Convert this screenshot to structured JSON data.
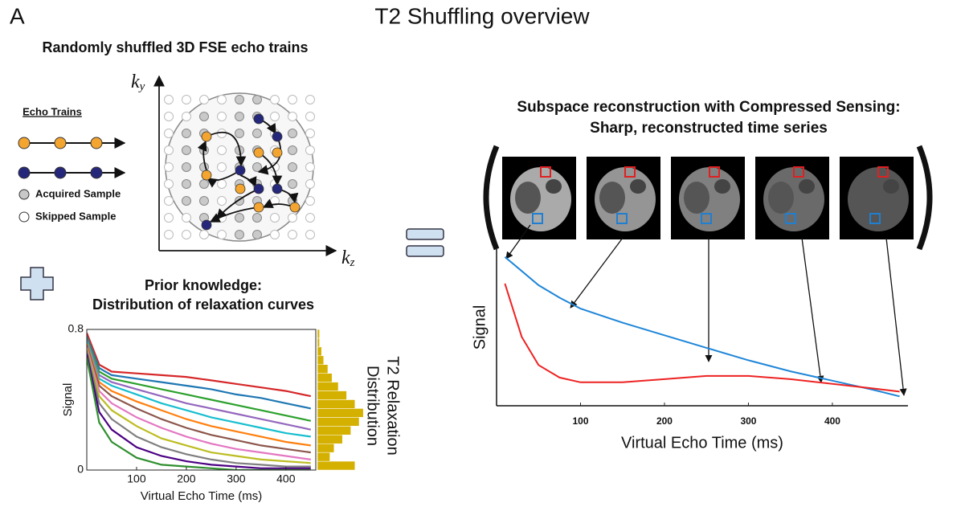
{
  "panel_label": "A",
  "title": "T2 Shuffling overview",
  "sampling": {
    "heading": "Randomly shuffled 3D FSE echo trains",
    "legend_title": "Echo Trains",
    "legend": [
      "Acquired Sample",
      "Skipped Sample"
    ],
    "axis_y": {
      "base": "k",
      "sub": "y"
    },
    "axis_z": {
      "base": "k",
      "sub": "z"
    }
  },
  "prior": {
    "heading": [
      "Prior knowledge:",
      "Distribution of relaxation curves"
    ],
    "histogram_label": [
      "T2 Relaxation",
      "Distribution"
    ]
  },
  "recon": {
    "heading": [
      "Subspace reconstruction with Compressed Sensing:",
      "Sharp, reconstructed time series"
    ]
  },
  "chart_data": [
    {
      "type": "line",
      "xlabel": "Virtual Echo Time (ms)",
      "ylabel": "Signal",
      "xlim": [
        0,
        460
      ],
      "ylim": [
        0,
        0.8
      ],
      "xticks": [
        100,
        200,
        300,
        400
      ],
      "yticks": [
        0,
        0.8
      ],
      "x": [
        0,
        25,
        50,
        100,
        150,
        200,
        250,
        300,
        350,
        400,
        450
      ],
      "series": [
        {
          "color": "#d62728",
          "values": [
            0.78,
            0.6,
            0.56,
            0.55,
            0.54,
            0.53,
            0.51,
            0.49,
            0.47,
            0.45,
            0.42
          ]
        },
        {
          "color": "#1f77b4",
          "values": [
            0.76,
            0.58,
            0.54,
            0.52,
            0.5,
            0.48,
            0.46,
            0.43,
            0.41,
            0.38,
            0.35
          ]
        },
        {
          "color": "#2ca02c",
          "values": [
            0.75,
            0.56,
            0.52,
            0.49,
            0.46,
            0.43,
            0.4,
            0.37,
            0.34,
            0.31,
            0.28
          ]
        },
        {
          "color": "#9467bd",
          "values": [
            0.74,
            0.54,
            0.5,
            0.46,
            0.42,
            0.38,
            0.35,
            0.32,
            0.29,
            0.26,
            0.23
          ]
        },
        {
          "color": "#17becf",
          "values": [
            0.73,
            0.52,
            0.48,
            0.43,
            0.38,
            0.34,
            0.3,
            0.27,
            0.24,
            0.21,
            0.19
          ]
        },
        {
          "color": "#ff7f0e",
          "values": [
            0.72,
            0.5,
            0.45,
            0.39,
            0.34,
            0.29,
            0.25,
            0.22,
            0.19,
            0.16,
            0.14
          ]
        },
        {
          "color": "#8c564b",
          "values": [
            0.71,
            0.48,
            0.42,
            0.35,
            0.29,
            0.24,
            0.2,
            0.17,
            0.14,
            0.12,
            0.1
          ]
        },
        {
          "color": "#e377c2",
          "values": [
            0.7,
            0.45,
            0.38,
            0.3,
            0.24,
            0.19,
            0.15,
            0.12,
            0.1,
            0.08,
            0.06
          ]
        },
        {
          "color": "#bcbd22",
          "values": [
            0.69,
            0.42,
            0.34,
            0.25,
            0.18,
            0.14,
            0.1,
            0.08,
            0.06,
            0.05,
            0.04
          ]
        },
        {
          "color": "#7f7f7f",
          "values": [
            0.68,
            0.38,
            0.29,
            0.19,
            0.13,
            0.09,
            0.06,
            0.04,
            0.03,
            0.02,
            0.02
          ]
        },
        {
          "color": "#4b0082",
          "values": [
            0.66,
            0.33,
            0.23,
            0.13,
            0.08,
            0.05,
            0.03,
            0.02,
            0.01,
            0.01,
            0.01
          ]
        },
        {
          "color": "#2f8f2f",
          "values": [
            0.64,
            0.27,
            0.16,
            0.07,
            0.03,
            0.02,
            0.01,
            0,
            0,
            0,
            0
          ]
        }
      ]
    },
    {
      "type": "histogram",
      "orientation": "horizontal",
      "color": "#d4b000",
      "bins": [
        0,
        0.05,
        0.1,
        0.15,
        0.2,
        0.25,
        0.3,
        0.35,
        0.4,
        0.45,
        0.5,
        0.55,
        0.6,
        0.65,
        0.7,
        0.75,
        0.8
      ],
      "counts": [
        18,
        6,
        8,
        12,
        16,
        20,
        22,
        18,
        14,
        10,
        7,
        5,
        3,
        2,
        1,
        1
      ],
      "xlim": [
        0,
        25
      ],
      "ylim": [
        0,
        0.8
      ]
    },
    {
      "type": "line",
      "xlabel": "Virtual Echo Time (ms)",
      "ylabel": "Signal",
      "xlim": [
        0,
        490
      ],
      "ylim": [
        0,
        1
      ],
      "xticks": [
        100,
        200,
        300,
        400
      ],
      "x": [
        10,
        30,
        50,
        75,
        100,
        150,
        200,
        250,
        300,
        350,
        400,
        450,
        480
      ],
      "series": [
        {
          "color": "#1f86d8",
          "values": [
            0.95,
            0.86,
            0.77,
            0.69,
            0.62,
            0.53,
            0.45,
            0.37,
            0.29,
            0.22,
            0.16,
            0.1,
            0.06
          ]
        },
        {
          "color": "#ee2222",
          "values": [
            0.78,
            0.44,
            0.26,
            0.18,
            0.15,
            0.15,
            0.17,
            0.19,
            0.19,
            0.17,
            0.14,
            0.11,
            0.09
          ]
        }
      ]
    }
  ]
}
